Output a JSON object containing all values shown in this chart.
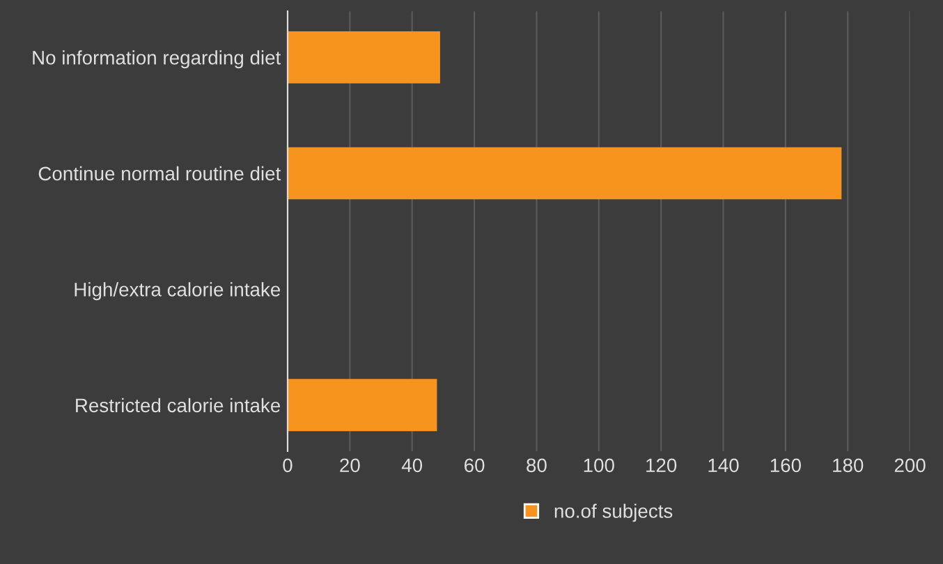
{
  "chart_data": {
    "type": "bar",
    "orientation": "horizontal",
    "categories": [
      "No information regarding diet",
      "Continue normal routine diet",
      "High/extra calorie intake",
      "Restricted calorie intake"
    ],
    "series": [
      {
        "name": "no.of subjects",
        "color": "#f7941d",
        "values": [
          49,
          178,
          0,
          48
        ]
      }
    ],
    "xlim": [
      0,
      200
    ],
    "xticks": [
      0,
      20,
      40,
      60,
      80,
      100,
      120,
      140,
      160,
      180,
      200
    ],
    "grid": "x",
    "legend": "bottom"
  }
}
